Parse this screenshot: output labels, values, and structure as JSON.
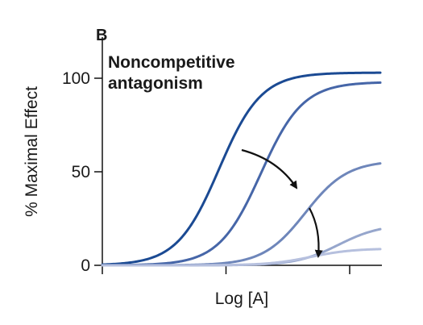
{
  "panel_label": "B",
  "chart_data": {
    "type": "line",
    "annotation": [
      "Noncompetitive",
      "antagonism"
    ],
    "xlabel": "Log [A]",
    "ylabel": "% Maximal Effect",
    "ylim": [
      0,
      100
    ],
    "yticks": [
      0,
      50,
      100
    ],
    "x_tick_marks": 3,
    "grid": false,
    "series": [
      {
        "emax": 103,
        "ec50": 0.42,
        "hill": 2.2,
        "color": "#1b4a93"
      },
      {
        "emax": 98,
        "ec50": 0.57,
        "hill": 2.2,
        "color": "#4666a8"
      },
      {
        "emax": 56,
        "ec50": 0.73,
        "hill": 2.2,
        "color": "#6e86ba"
      },
      {
        "emax": 22,
        "ec50": 0.85,
        "hill": 2.2,
        "color": "#96a6cc"
      },
      {
        "emax": 9,
        "ec50": 0.75,
        "hill": 2.2,
        "color": "#b6c0de"
      }
    ],
    "arrows": [
      {
        "from": "curve 1",
        "to": "curve 3"
      },
      {
        "from": "curve 3",
        "to": "curve 5"
      }
    ]
  }
}
